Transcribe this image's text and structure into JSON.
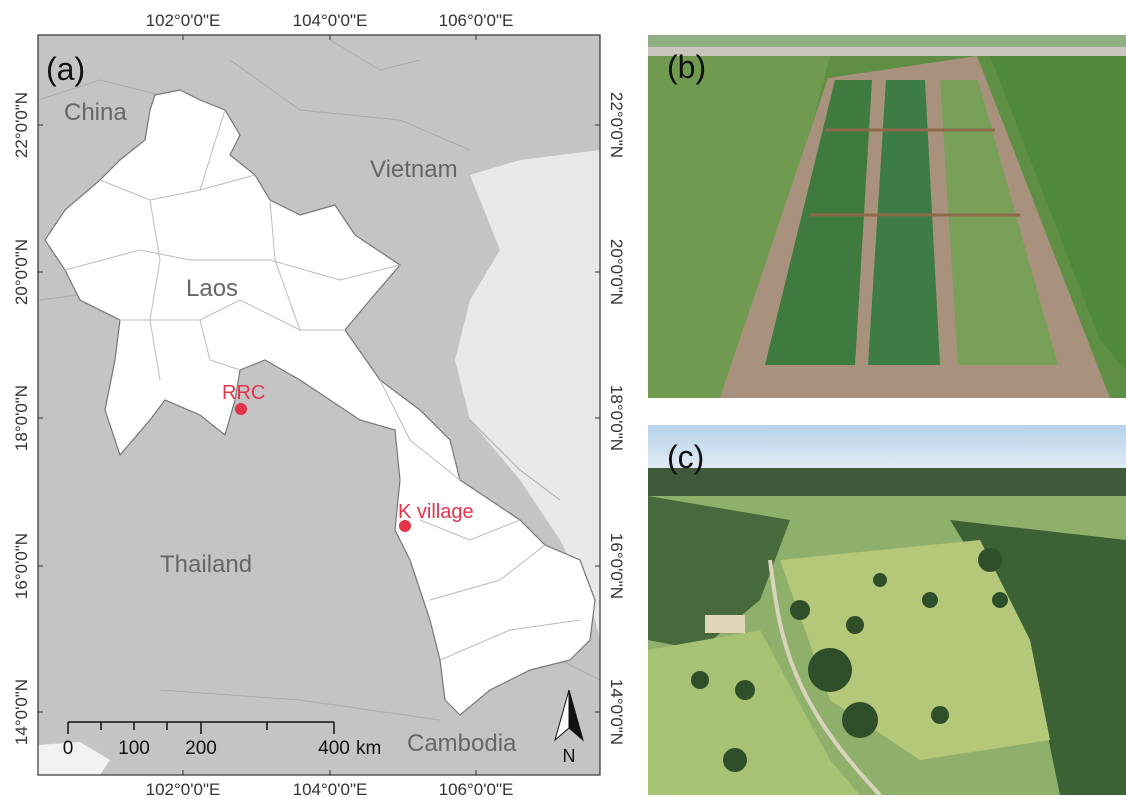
{
  "map": {
    "label": "(a)",
    "top_ticks": [
      "102°0'0\"E",
      "104°0'0\"E",
      "106°0'0\"E"
    ],
    "bottom_ticks": [
      "102°0'0\"E",
      "104°0'0\"E",
      "106°0'0\"E"
    ],
    "left_ticks": [
      "22°0'0\"N",
      "20°0'0\"N",
      "18°0'0\"N",
      "16°0'0\"N",
      "14°0'0\"N"
    ],
    "right_ticks": [
      "22°0'0\"N",
      "20°0'0\"N",
      "18°0'0\"N",
      "16°0'0\"N",
      "14°0'0\"N"
    ],
    "countries": [
      "China",
      "Vietnam",
      "Laos",
      "Thailand",
      "Cambodia"
    ],
    "sites": [
      "RRC",
      "K village"
    ],
    "scale_labels": [
      "0",
      "100",
      "200",
      "400",
      "km"
    ],
    "north": "N"
  },
  "photos": [
    {
      "label": "(b)"
    },
    {
      "label": "(c)"
    }
  ]
}
